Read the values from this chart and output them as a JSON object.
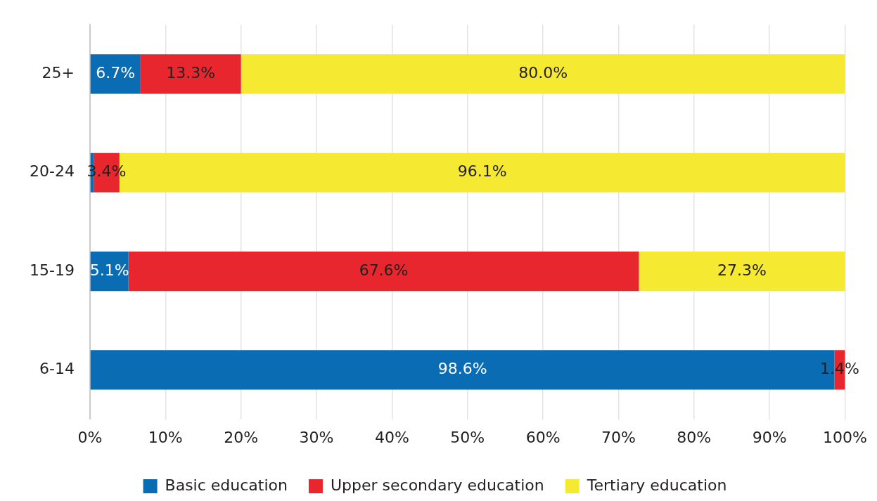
{
  "chart_data": {
    "type": "bar",
    "orientation": "horizontal",
    "stacked": true,
    "categories": [
      "25+",
      "20-24",
      "15-19",
      "6-14"
    ],
    "series": [
      {
        "name": "Basic education",
        "color": "#0a6db3",
        "values": [
          6.7,
          0.5,
          5.1,
          98.6
        ],
        "value_labels": [
          "6.7%",
          null,
          "5.1%",
          "98.6%"
        ]
      },
      {
        "name": "Upper secondary education",
        "color": "#e8262e",
        "values": [
          13.3,
          3.4,
          67.6,
          1.4
        ],
        "value_labels": [
          "13.3%",
          "3.4%",
          "67.6%",
          "1.4%"
        ]
      },
      {
        "name": "Tertiary education",
        "color": "#f6e932",
        "values": [
          80.0,
          96.1,
          27.3,
          0
        ],
        "value_labels": [
          "80.0%",
          "96.1%",
          "27.3%",
          null
        ]
      }
    ],
    "xlim": [
      0,
      100
    ],
    "xticks": [
      {
        "value": 0,
        "label": "0%"
      },
      {
        "value": 10,
        "label": "10%"
      },
      {
        "value": 20,
        "label": "20%"
      },
      {
        "value": 30,
        "label": "30%"
      },
      {
        "value": 40,
        "label": "40%"
      },
      {
        "value": 50,
        "label": "50%"
      },
      {
        "value": 60,
        "label": "60%"
      },
      {
        "value": 70,
        "label": "70%"
      },
      {
        "value": 80,
        "label": "80%"
      },
      {
        "value": 90,
        "label": "90%"
      },
      {
        "value": 100,
        "label": "100%"
      }
    ],
    "grid": "x",
    "legend": "bottom"
  }
}
